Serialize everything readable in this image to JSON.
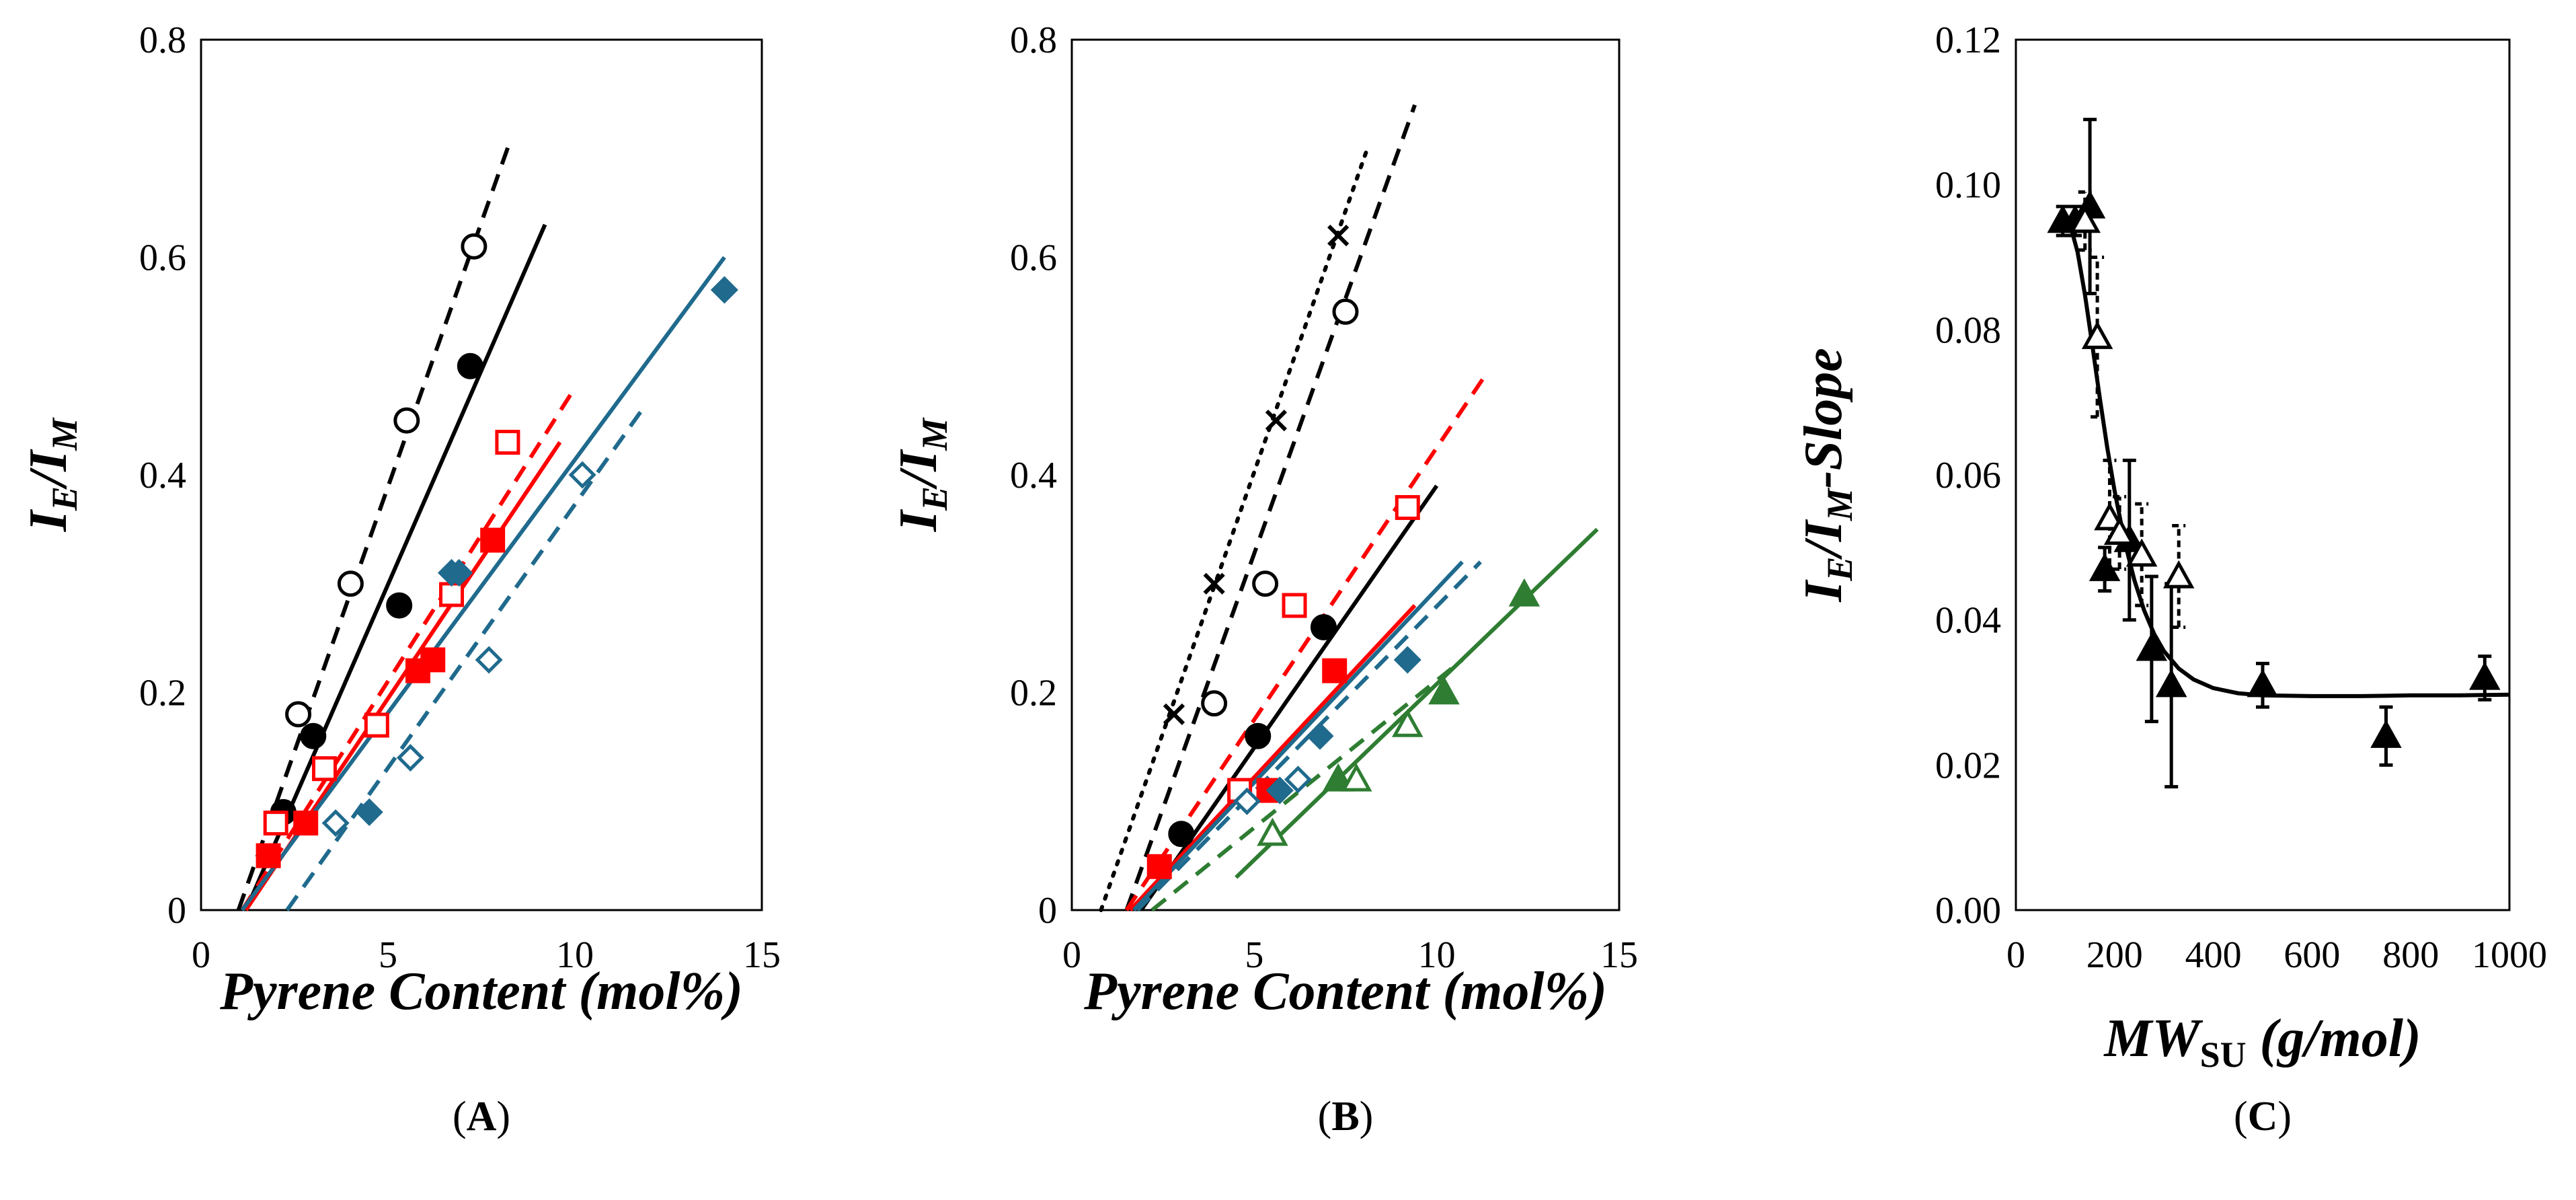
{
  "figure": {
    "panel_labels": [
      {
        "open": "(",
        "letter": "A",
        "close": ")"
      },
      {
        "open": "(",
        "letter": "B",
        "close": ")"
      },
      {
        "open": "(",
        "letter": "C",
        "close": ")"
      }
    ]
  },
  "chart_data": [
    {
      "id": "A",
      "type": "scatter",
      "title": "",
      "xlabel": "Pyrene Content (mol%)",
      "ylabel": {
        "main": "I",
        "sub1": "E",
        "slash": "/I",
        "sub2": "M"
      },
      "xlim": [
        0,
        15
      ],
      "ylim": [
        0,
        0.8
      ],
      "xticks": [
        0,
        5,
        10,
        15
      ],
      "xtick_labels": [
        "0",
        "5",
        "10",
        "15"
      ],
      "yticks": [
        0,
        0.2,
        0.4,
        0.6,
        0.8
      ],
      "ytick_labels": [
        "0",
        "0.2",
        "0.4",
        "0.6",
        "0.8"
      ],
      "colors": {
        "black": "#000000",
        "red": "#ff0000",
        "blue": "#1f6a8d",
        "green": "#2e7d32"
      },
      "series": [
        {
          "name": "black open circles",
          "color": "#000000",
          "marker": "circle",
          "filled": false,
          "x": [
            2.6,
            4.0,
            5.5,
            7.3
          ],
          "y": [
            0.18,
            0.3,
            0.45,
            0.61
          ],
          "fit": {
            "x": [
              1.0,
              8.3
            ],
            "y": [
              0.0,
              0.71
            ],
            "dash": "dashed"
          }
        },
        {
          "name": "black filled circles",
          "color": "#000000",
          "marker": "circle",
          "filled": true,
          "x": [
            2.2,
            3.0,
            5.3,
            7.2
          ],
          "y": [
            0.09,
            0.16,
            0.28,
            0.5
          ],
          "fit": {
            "x": [
              1.2,
              9.2
            ],
            "y": [
              0.0,
              0.63
            ],
            "dash": "solid"
          }
        },
        {
          "name": "red open squares",
          "color": "#ff0000",
          "marker": "square",
          "filled": false,
          "x": [
            2.0,
            3.3,
            4.7,
            6.7,
            8.2
          ],
          "y": [
            0.08,
            0.13,
            0.17,
            0.29,
            0.43
          ],
          "fit": {
            "x": [
              1.1,
              10.0
            ],
            "y": [
              0.0,
              0.48
            ],
            "dash": "dashed"
          }
        },
        {
          "name": "red filled squares",
          "color": "#ff0000",
          "marker": "square",
          "filled": true,
          "x": [
            1.8,
            2.8,
            5.8,
            6.2,
            7.8
          ],
          "y": [
            0.05,
            0.08,
            0.22,
            0.23,
            0.34
          ],
          "fit": {
            "x": [
              1.2,
              9.6
            ],
            "y": [
              0.0,
              0.43
            ],
            "dash": "solid"
          }
        },
        {
          "name": "blue filled diamonds",
          "color": "#1f6a8d",
          "marker": "diamond",
          "filled": true,
          "x": [
            4.5,
            6.7,
            6.9,
            14.0
          ],
          "y": [
            0.09,
            0.31,
            0.31,
            0.57
          ],
          "fit": {
            "x": [
              1.1,
              14.0
            ],
            "y": [
              0.0,
              0.6
            ],
            "dash": "solid"
          }
        },
        {
          "name": "blue open diamonds",
          "color": "#1f6a8d",
          "marker": "diamond",
          "filled": false,
          "x": [
            3.6,
            5.6,
            7.7,
            10.2
          ],
          "y": [
            0.08,
            0.14,
            0.23,
            0.4
          ],
          "fit": {
            "x": [
              2.3,
              11.8
            ],
            "y": [
              0.0,
              0.46
            ],
            "dash": "dashed"
          }
        }
      ]
    },
    {
      "id": "B",
      "type": "scatter",
      "title": "",
      "xlabel": "Pyrene Content (mol%)",
      "ylabel": {
        "main": "I",
        "sub1": "E",
        "slash": "/I",
        "sub2": "M"
      },
      "xlim": [
        0,
        15
      ],
      "ylim": [
        0,
        0.8
      ],
      "xticks": [
        0,
        5,
        10,
        15
      ],
      "xtick_labels": [
        "0",
        "5",
        "10",
        "15"
      ],
      "yticks": [
        0,
        0.2,
        0.4,
        0.6,
        0.8
      ],
      "ytick_labels": [
        "0",
        "0.2",
        "0.4",
        "0.6",
        "0.8"
      ],
      "series": [
        {
          "name": "black crosses",
          "color": "#000000",
          "marker": "cross",
          "filled": false,
          "x": [
            2.8,
            3.9,
            5.6,
            7.3
          ],
          "y": [
            0.18,
            0.3,
            0.45,
            0.62
          ],
          "fit": {
            "x": [
              0.8,
              8.1
            ],
            "y": [
              0.0,
              0.7
            ],
            "dash": "dotted"
          }
        },
        {
          "name": "black open circles",
          "color": "#000000",
          "marker": "circle",
          "filled": false,
          "x": [
            3.9,
            5.3,
            7.5
          ],
          "y": [
            0.19,
            0.3,
            0.55
          ],
          "fit": {
            "x": [
              1.5,
              9.4
            ],
            "y": [
              0.0,
              0.74
            ],
            "dash": "dashed"
          }
        },
        {
          "name": "black filled circles",
          "color": "#000000",
          "marker": "circle",
          "filled": true,
          "x": [
            3.0,
            5.1,
            6.9
          ],
          "y": [
            0.07,
            0.16,
            0.26
          ],
          "fit": {
            "x": [
              1.9,
              10.0
            ],
            "y": [
              0.0,
              0.39
            ],
            "dash": "solid"
          }
        },
        {
          "name": "red open squares",
          "color": "#ff0000",
          "marker": "square",
          "filled": false,
          "x": [
            4.6,
            6.1,
            9.2
          ],
          "y": [
            0.11,
            0.28,
            0.37
          ],
          "fit": {
            "x": [
              1.5,
              11.3
            ],
            "y": [
              0.0,
              0.49
            ],
            "dash": "dashed"
          }
        },
        {
          "name": "red filled squares",
          "color": "#ff0000",
          "marker": "square",
          "filled": true,
          "x": [
            2.4,
            5.4,
            7.2
          ],
          "y": [
            0.04,
            0.11,
            0.22
          ],
          "fit": {
            "x": [
              1.6,
              9.4
            ],
            "y": [
              0.0,
              0.28
            ],
            "dash": "solid"
          }
        },
        {
          "name": "blue filled diamonds",
          "color": "#1f6a8d",
          "marker": "diamond",
          "filled": true,
          "x": [
            5.7,
            6.8,
            9.2
          ],
          "y": [
            0.11,
            0.16,
            0.23
          ],
          "fit": {
            "x": [
              1.7,
              10.7
            ],
            "y": [
              0.0,
              0.32
            ],
            "dash": "solid"
          }
        },
        {
          "name": "blue open diamonds",
          "color": "#1f6a8d",
          "marker": "diamond",
          "filled": false,
          "x": [
            4.8,
            6.2
          ],
          "y": [
            0.1,
            0.12
          ],
          "fit": {
            "x": [
              1.8,
              11.2
            ],
            "y": [
              0.0,
              0.32
            ],
            "dash": "dashed"
          }
        },
        {
          "name": "green filled triangles",
          "color": "#2e7d32",
          "marker": "triangle",
          "filled": true,
          "x": [
            7.3,
            10.2,
            12.4
          ],
          "y": [
            0.12,
            0.2,
            0.29
          ],
          "fit": {
            "x": [
              4.5,
              14.4
            ],
            "y": [
              0.03,
              0.35
            ],
            "dash": "solid"
          }
        },
        {
          "name": "green open triangles",
          "color": "#2e7d32",
          "marker": "triangle",
          "filled": false,
          "x": [
            5.5,
            7.8,
            9.2
          ],
          "y": [
            0.07,
            0.12,
            0.17
          ],
          "fit": {
            "x": [
              2.2,
              10.7
            ],
            "y": [
              0.0,
              0.23
            ],
            "dash": "dashed"
          }
        }
      ]
    },
    {
      "id": "C",
      "type": "scatter",
      "title": "",
      "xlabel": {
        "main": "MW",
        "sub": "SU",
        "rest": " (g/mol)"
      },
      "ylabel": {
        "main": "I",
        "sub1": "E",
        "slash": "/I",
        "sub2": "M",
        "rest": "-Slope"
      },
      "xlim": [
        0,
        1000
      ],
      "ylim": [
        0,
        0.12
      ],
      "xticks": [
        0,
        200,
        400,
        600,
        800,
        1000
      ],
      "xtick_labels": [
        "0",
        "200",
        "400",
        "600",
        "800",
        "1000"
      ],
      "yticks": [
        0,
        0.02,
        0.04,
        0.06,
        0.08,
        0.1,
        0.12
      ],
      "ytick_labels": [
        "0.00",
        "0.02",
        "0.04",
        "0.06",
        "0.08",
        "0.10",
        "0.12"
      ],
      "series": [
        {
          "name": "filled triangles",
          "color": "#000000",
          "marker": "triangle",
          "filled": true,
          "x": [
            95,
            120,
            150,
            180,
            230,
            275,
            315,
            500,
            750,
            950
          ],
          "y": [
            0.095,
            0.095,
            0.097,
            0.047,
            0.051,
            0.036,
            0.031,
            0.031,
            0.024,
            0.032
          ],
          "err": [
            0.002,
            0.002,
            0.012,
            0.003,
            0.011,
            0.01,
            0.014,
            0.003,
            0.004,
            0.003
          ]
        },
        {
          "name": "open triangles",
          "color": "#000000",
          "marker": "triangle",
          "filled": false,
          "x": [
            140,
            165,
            190,
            210,
            255,
            330
          ],
          "y": [
            0.095,
            0.079,
            0.054,
            0.052,
            0.049,
            0.046
          ],
          "err": [
            0.004,
            0.011,
            0.008,
            0.005,
            0.007,
            0.007
          ],
          "err_dash": "dashed"
        },
        {
          "name": "exponential fit",
          "type": "curve",
          "color": "#000000",
          "x": [
            95,
            110,
            125,
            140,
            155,
            170,
            185,
            200,
            220,
            240,
            260,
            280,
            300,
            330,
            360,
            400,
            450,
            500,
            600,
            700,
            800,
            900,
            1000
          ],
          "y": [
            0.0965,
            0.0945,
            0.0907,
            0.0848,
            0.0778,
            0.0706,
            0.0638,
            0.0578,
            0.0509,
            0.0455,
            0.0413,
            0.0381,
            0.0357,
            0.0333,
            0.0318,
            0.0306,
            0.0299,
            0.0296,
            0.0295,
            0.0295,
            0.0296,
            0.0296,
            0.0297
          ]
        }
      ]
    }
  ]
}
